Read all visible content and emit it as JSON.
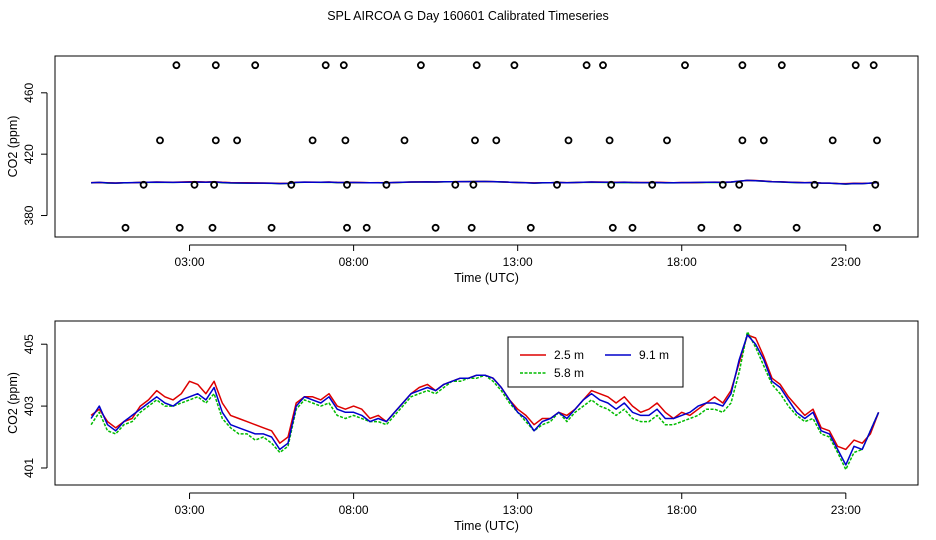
{
  "title": "SPL AIRCOA G  Day 160601  Calibrated Timeseries",
  "colors": {
    "2.5 m": "#dd0000",
    "5.8 m": "#00bb00",
    "9.1 m": "#0000cc"
  },
  "chart_data": [
    {
      "type": "scatter+line",
      "xlabel": "Time (UTC)",
      "ylabel": "CO2 (ppm)",
      "x_ticks": [
        "03:00",
        "08:00",
        "13:00",
        "18:00",
        "23:00"
      ],
      "y_ticks": [
        "380",
        "420",
        "460"
      ],
      "xlim_hours": [
        -1.1,
        25.2
      ],
      "ylim": [
        366,
        484
      ],
      "calibration_points": {
        "levels": [
          372,
          400,
          429,
          478
        ],
        "points": [
          {
            "x": 1.05,
            "y": 372
          },
          {
            "x": 2.7,
            "y": 372
          },
          {
            "x": 3.7,
            "y": 372
          },
          {
            "x": 5.5,
            "y": 372
          },
          {
            "x": 7.8,
            "y": 372
          },
          {
            "x": 8.4,
            "y": 372
          },
          {
            "x": 10.5,
            "y": 372
          },
          {
            "x": 11.6,
            "y": 372
          },
          {
            "x": 13.4,
            "y": 372
          },
          {
            "x": 15.9,
            "y": 372
          },
          {
            "x": 16.5,
            "y": 372
          },
          {
            "x": 18.6,
            "y": 372
          },
          {
            "x": 19.7,
            "y": 372
          },
          {
            "x": 21.5,
            "y": 372
          },
          {
            "x": 23.95,
            "y": 372
          },
          {
            "x": 1.6,
            "y": 400
          },
          {
            "x": 3.15,
            "y": 400
          },
          {
            "x": 3.75,
            "y": 400
          },
          {
            "x": 6.1,
            "y": 400
          },
          {
            "x": 7.8,
            "y": 400
          },
          {
            "x": 9.0,
            "y": 400
          },
          {
            "x": 11.1,
            "y": 400
          },
          {
            "x": 11.65,
            "y": 400
          },
          {
            "x": 14.2,
            "y": 400
          },
          {
            "x": 15.85,
            "y": 400
          },
          {
            "x": 17.1,
            "y": 400
          },
          {
            "x": 19.25,
            "y": 400
          },
          {
            "x": 19.75,
            "y": 400
          },
          {
            "x": 22.05,
            "y": 400
          },
          {
            "x": 23.9,
            "y": 400
          },
          {
            "x": 2.1,
            "y": 429
          },
          {
            "x": 3.8,
            "y": 429
          },
          {
            "x": 4.45,
            "y": 429
          },
          {
            "x": 6.75,
            "y": 429
          },
          {
            "x": 7.75,
            "y": 429
          },
          {
            "x": 9.55,
            "y": 429
          },
          {
            "x": 11.7,
            "y": 429
          },
          {
            "x": 12.35,
            "y": 429
          },
          {
            "x": 14.55,
            "y": 429
          },
          {
            "x": 15.8,
            "y": 429
          },
          {
            "x": 17.55,
            "y": 429
          },
          {
            "x": 19.85,
            "y": 429
          },
          {
            "x": 20.5,
            "y": 429
          },
          {
            "x": 22.6,
            "y": 429
          },
          {
            "x": 23.95,
            "y": 429
          },
          {
            "x": 2.6,
            "y": 478
          },
          {
            "x": 3.8,
            "y": 478
          },
          {
            "x": 5.0,
            "y": 478
          },
          {
            "x": 7.15,
            "y": 478
          },
          {
            "x": 7.7,
            "y": 478
          },
          {
            "x": 10.05,
            "y": 478
          },
          {
            "x": 11.75,
            "y": 478
          },
          {
            "x": 12.9,
            "y": 478
          },
          {
            "x": 15.1,
            "y": 478
          },
          {
            "x": 15.6,
            "y": 478
          },
          {
            "x": 18.1,
            "y": 478
          },
          {
            "x": 19.85,
            "y": 478
          },
          {
            "x": 21.05,
            "y": 478
          },
          {
            "x": 23.3,
            "y": 478
          },
          {
            "x": 23.85,
            "y": 478
          }
        ]
      }
    },
    {
      "type": "line",
      "xlabel": "Time (UTC)",
      "ylabel": "CO2 (ppm)",
      "x_ticks": [
        "03:00",
        "08:00",
        "13:00",
        "18:00",
        "23:00"
      ],
      "y_ticks": [
        "401",
        "403",
        "405"
      ],
      "xlim_hours": [
        -1.1,
        25.2
      ],
      "ylim": [
        400.45,
        405.75
      ],
      "legend_position": "top-center",
      "x": [
        0.0,
        0.25,
        0.5,
        0.75,
        1.0,
        1.25,
        1.5,
        1.75,
        2.0,
        2.25,
        2.5,
        2.75,
        3.0,
        3.25,
        3.5,
        3.75,
        4.0,
        4.25,
        4.5,
        4.75,
        5.0,
        5.25,
        5.5,
        5.75,
        6.0,
        6.25,
        6.5,
        6.75,
        7.0,
        7.25,
        7.5,
        7.75,
        8.0,
        8.25,
        8.5,
        8.75,
        9.0,
        9.25,
        9.5,
        9.75,
        10.0,
        10.25,
        10.5,
        10.75,
        11.0,
        11.25,
        11.5,
        11.75,
        12.0,
        12.25,
        12.5,
        12.75,
        13.0,
        13.25,
        13.5,
        13.75,
        14.0,
        14.25,
        14.5,
        14.75,
        15.0,
        15.25,
        15.5,
        15.75,
        16.0,
        16.25,
        16.5,
        16.75,
        17.0,
        17.25,
        17.5,
        17.75,
        18.0,
        18.25,
        18.5,
        18.75,
        19.0,
        19.25,
        19.5,
        19.75,
        20.0,
        20.25,
        20.5,
        20.75,
        21.0,
        21.25,
        21.5,
        21.75,
        22.0,
        22.25,
        22.5,
        22.75,
        23.0,
        23.25,
        23.5,
        23.75,
        24.0
      ],
      "series": [
        {
          "name": "2.5 m",
          "values": [
            402.7,
            402.9,
            402.5,
            402.3,
            402.5,
            402.6,
            403.0,
            403.2,
            403.5,
            403.3,
            403.2,
            403.4,
            403.8,
            403.7,
            403.4,
            403.8,
            403.1,
            402.7,
            402.6,
            402.5,
            402.4,
            402.3,
            402.2,
            401.8,
            402.0,
            403.1,
            403.3,
            403.3,
            403.2,
            403.4,
            403.0,
            402.9,
            403.0,
            402.9,
            402.6,
            402.7,
            402.5,
            402.8,
            403.1,
            403.4,
            403.6,
            403.7,
            403.5,
            403.7,
            403.8,
            403.9,
            403.9,
            404.0,
            404.0,
            403.9,
            403.6,
            403.2,
            402.9,
            402.7,
            402.4,
            402.6,
            402.6,
            402.8,
            402.7,
            402.9,
            403.2,
            403.5,
            403.4,
            403.3,
            403.1,
            403.3,
            403.0,
            402.8,
            402.9,
            403.1,
            402.8,
            402.6,
            402.8,
            402.7,
            402.9,
            403.1,
            403.3,
            403.1,
            403.5,
            404.4,
            405.3,
            405.2,
            404.6,
            403.9,
            403.7,
            403.3,
            403.0,
            402.7,
            402.9,
            402.3,
            402.2,
            401.7,
            401.6,
            401.9,
            401.8,
            402.1,
            402.8
          ]
        },
        {
          "name": "5.8 m",
          "values": [
            402.4,
            402.8,
            402.2,
            402.1,
            402.4,
            402.5,
            402.8,
            403.0,
            403.2,
            403.0,
            403.0,
            403.1,
            403.2,
            403.3,
            403.1,
            403.4,
            402.6,
            402.3,
            402.1,
            402.1,
            401.9,
            402.0,
            401.8,
            401.5,
            401.7,
            402.9,
            403.2,
            403.1,
            403.0,
            403.1,
            402.7,
            402.6,
            402.7,
            402.6,
            402.5,
            402.5,
            402.4,
            402.7,
            403.0,
            403.3,
            403.4,
            403.5,
            403.4,
            403.6,
            403.8,
            403.8,
            403.9,
            403.9,
            404.0,
            403.8,
            403.5,
            403.1,
            402.8,
            402.5,
            402.2,
            402.4,
            402.5,
            402.8,
            402.5,
            402.8,
            403.0,
            403.2,
            403.0,
            402.9,
            402.7,
            402.9,
            402.6,
            402.5,
            402.5,
            402.7,
            402.4,
            402.4,
            402.5,
            402.6,
            402.7,
            402.9,
            402.9,
            402.8,
            403.1,
            404.1,
            405.4,
            404.9,
            404.3,
            403.7,
            403.4,
            403.0,
            402.7,
            402.5,
            402.6,
            402.1,
            402.0,
            401.5,
            400.95,
            401.5,
            401.6,
            402.2,
            402.8
          ]
        },
        {
          "name": "9.1 m",
          "values": [
            402.6,
            403.0,
            402.4,
            402.2,
            402.5,
            402.7,
            402.9,
            403.1,
            403.3,
            403.1,
            403.0,
            403.2,
            403.3,
            403.4,
            403.2,
            403.6,
            402.8,
            402.4,
            402.3,
            402.2,
            402.1,
            402.1,
            402.0,
            401.6,
            401.8,
            403.0,
            403.3,
            403.2,
            403.1,
            403.3,
            402.9,
            402.8,
            402.8,
            402.7,
            402.5,
            402.6,
            402.5,
            402.8,
            403.1,
            403.4,
            403.5,
            403.6,
            403.5,
            403.7,
            403.8,
            403.9,
            403.9,
            404.0,
            404.0,
            403.9,
            403.6,
            403.2,
            402.8,
            402.6,
            402.2,
            402.5,
            402.6,
            402.8,
            402.6,
            402.9,
            403.2,
            403.4,
            403.2,
            403.1,
            402.9,
            403.1,
            402.8,
            402.7,
            402.7,
            402.9,
            402.6,
            402.6,
            402.7,
            402.8,
            403.0,
            403.1,
            403.1,
            403.0,
            403.4,
            404.5,
            405.3,
            405.0,
            404.5,
            403.8,
            403.6,
            403.2,
            402.8,
            402.6,
            402.8,
            402.2,
            402.1,
            401.6,
            401.1,
            401.7,
            401.6,
            402.2,
            402.8
          ]
        }
      ]
    }
  ]
}
